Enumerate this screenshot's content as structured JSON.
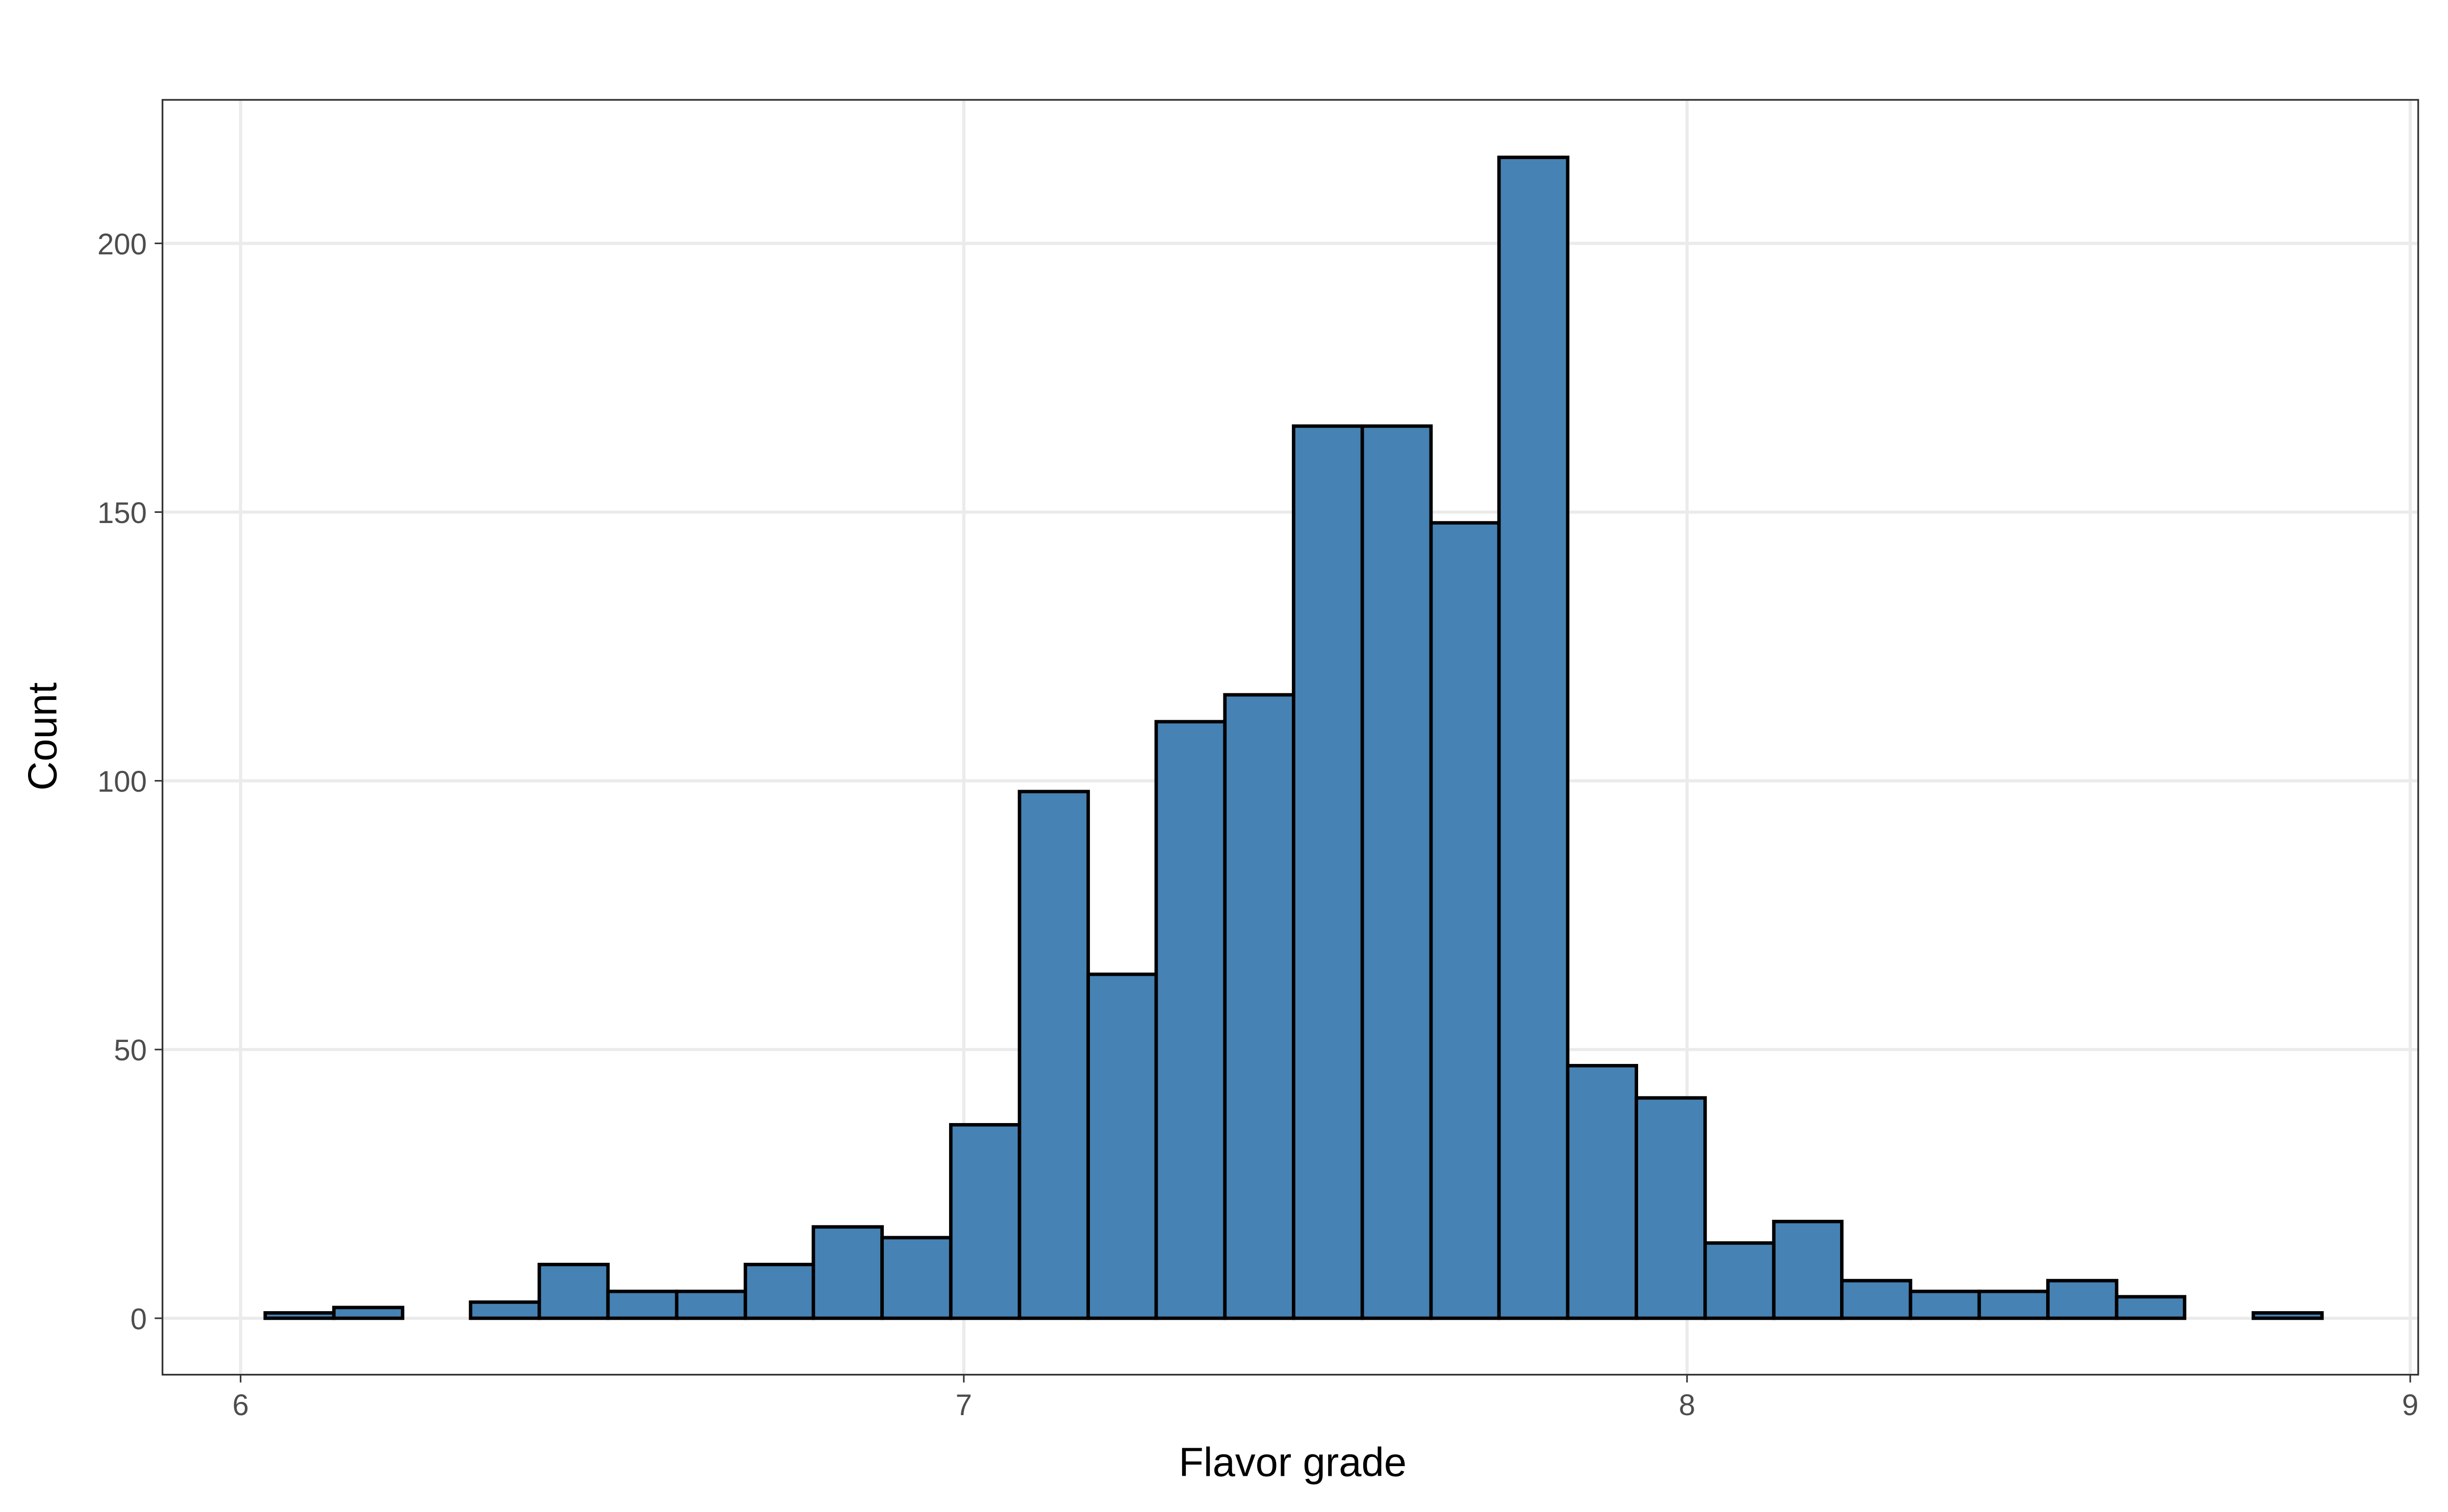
{
  "chart_data": {
    "type": "histogram",
    "x_label": "Flavor grade",
    "y_label": "Count",
    "bins": [
      6.034,
      6.129,
      6.224,
      6.318,
      6.413,
      6.508,
      6.603,
      6.698,
      6.792,
      6.887,
      6.982,
      7.077,
      7.172,
      7.266,
      7.361,
      7.456,
      7.551,
      7.646,
      7.74,
      7.835,
      7.93,
      8.025,
      8.12,
      8.214,
      8.309,
      8.404,
      8.499,
      8.594,
      8.688,
      8.783,
      8.878
    ],
    "values": [
      1,
      2,
      0,
      3,
      10,
      5,
      5,
      10,
      17,
      15,
      36,
      98,
      64,
      111,
      116,
      166,
      166,
      148,
      216,
      47,
      41,
      14,
      18,
      7,
      5,
      5,
      7,
      4,
      0,
      1
    ],
    "color": "#4682b4",
    "edge_color": "#000000",
    "xlim": [
      5.892,
      9.011
    ],
    "ylim": [
      -10.5,
      226.7
    ],
    "xticks": [
      6,
      7,
      8,
      9
    ],
    "yticks": [
      0,
      50,
      100,
      150,
      200
    ],
    "grid": true
  }
}
